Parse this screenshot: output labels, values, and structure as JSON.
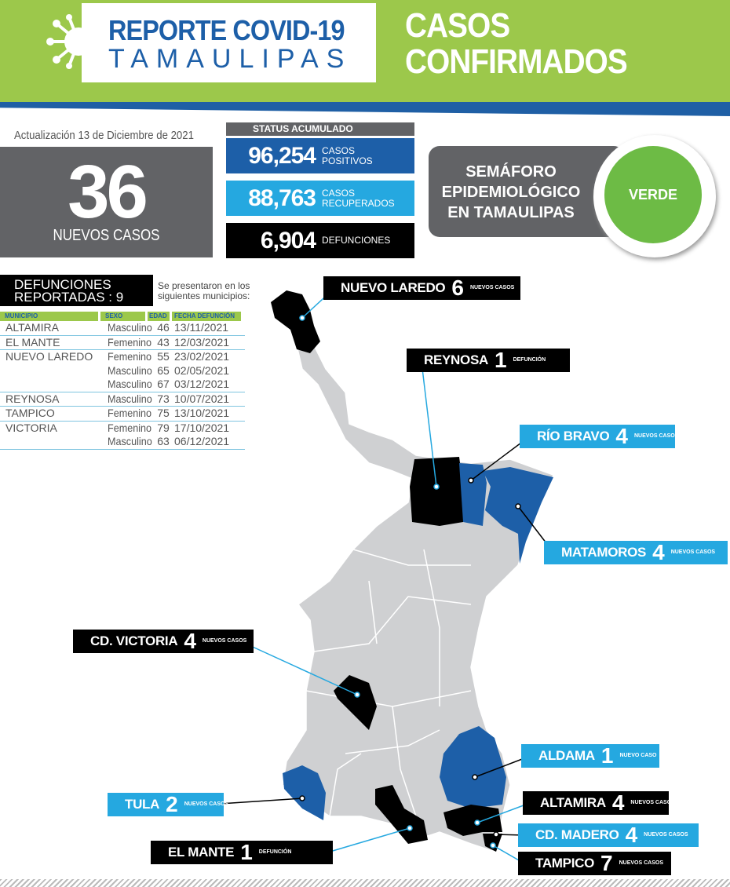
{
  "header": {
    "logo_line1": "REPORTE COVID-19",
    "logo_line2": "TAMAULIPAS",
    "title_line1": "CASOS",
    "title_line2": "CONFIRMADOS"
  },
  "update": "Actualización 13 de Diciembre de 2021",
  "new_cases": {
    "value": "36",
    "label": "NUEVOS CASOS"
  },
  "status": {
    "header": "STATUS ACUMULADO",
    "items": [
      {
        "value": "96,254",
        "label1": "CASOS",
        "label2": "POSITIVOS"
      },
      {
        "value": "88,763",
        "label1": "CASOS",
        "label2": "RECUPERADOS"
      },
      {
        "value": "6,904",
        "label1": "DEFUNCIONES",
        "label2": ""
      }
    ]
  },
  "semaforo": {
    "line1": "SEMÁFORO",
    "line2": "EPIDEMIOLÓGICO",
    "line3": "EN TAMAULIPAS",
    "value": "VERDE",
    "color": "#6dbb45"
  },
  "deaths": {
    "title1": "DEFUNCIONES",
    "title2": "REPORTADAS : 9",
    "note1": "Se presentaron en los",
    "note2": "siguientes municipios:",
    "columns": [
      "MUNICIPIO",
      "SEXO",
      "EDAD",
      "FECHA DEFUNCIÓN"
    ],
    "rows": [
      [
        "ALTAMIRA",
        "Masculino",
        "46",
        "13/11/2021"
      ],
      [
        "EL MANTE",
        "Femenino",
        "43",
        "12/03/2021"
      ],
      [
        "NUEVO LAREDO",
        "Femenino",
        "55",
        "23/02/2021"
      ],
      [
        "",
        "Masculino",
        "65",
        "02/05/2021"
      ],
      [
        "",
        "Masculino",
        "67",
        "03/12/2021"
      ],
      [
        "REYNOSA",
        "Masculino",
        "73",
        "10/07/2021"
      ],
      [
        "TAMPICO",
        "Femenino",
        "75",
        "13/10/2021"
      ],
      [
        "VICTORIA",
        "Femenino",
        "79",
        "17/10/2021"
      ],
      [
        "",
        "Masculino",
        "63",
        "06/12/2021"
      ]
    ]
  },
  "map_labels": [
    {
      "name": "NUEVO LAREDO",
      "num": "6",
      "sub": "NUEVOS CASOS",
      "style": "black"
    },
    {
      "name": "REYNOSA",
      "num": "1",
      "sub": "DEFUNCIÓN",
      "style": "black"
    },
    {
      "name": "RÍO BRAVO",
      "num": "4",
      "sub": "NUEVOS CASOS",
      "style": "blue"
    },
    {
      "name": "MATAMOROS",
      "num": "4",
      "sub": "NUEVOS CASOS",
      "style": "blue"
    },
    {
      "name": "CD. VICTORIA",
      "num": "4",
      "sub": "NUEVOS CASOS",
      "style": "black"
    },
    {
      "name": "ALDAMA",
      "num": "1",
      "sub": "NUEVO CASO",
      "style": "blue"
    },
    {
      "name": "TULA",
      "num": "2",
      "sub": "NUEVOS CASOS",
      "style": "blue"
    },
    {
      "name": "ALTAMIRA",
      "num": "4",
      "sub": "NUEVOS CASOS",
      "style": "black"
    },
    {
      "name": "CD. MADERO",
      "num": "4",
      "sub": "NUEVOS CASOS",
      "style": "blue"
    },
    {
      "name": "EL MANTE",
      "num": "1",
      "sub": "DEFUNCIÓN",
      "style": "black"
    },
    {
      "name": "TAMPICO",
      "num": "7",
      "sub": "NUEVOS CASOS",
      "style": "black"
    }
  ],
  "colors": {
    "green": "#9cc84b",
    "blue": "#1d5fa8",
    "light_blue": "#25a8e0",
    "gray": "#626366",
    "map_gray": "#cfd0d2"
  }
}
